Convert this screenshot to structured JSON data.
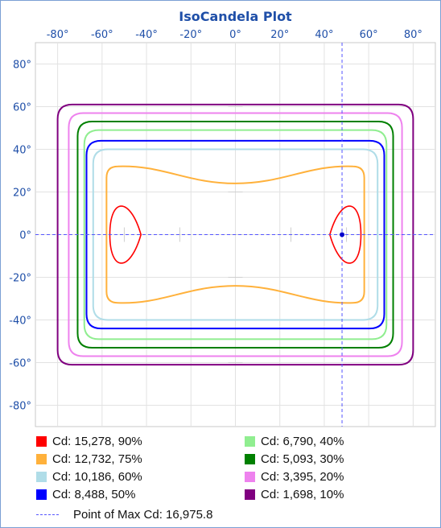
{
  "chart_data": {
    "type": "line",
    "title": "IsoCandela Plot",
    "xlim": [
      -90,
      90
    ],
    "ylim": [
      -90,
      90
    ],
    "x_ticks": [
      "-80°",
      "-60°",
      "-40°",
      "-20°",
      "0°",
      "20°",
      "40°",
      "60°",
      "80°"
    ],
    "y_ticks": [
      "80°",
      "60°",
      "40°",
      "20°",
      "0°",
      "-20°",
      "-40°",
      "-60°",
      "-80°"
    ],
    "grid": true,
    "legend_position": "bottom",
    "series": [
      {
        "name": "Cd: 15,278, 90%",
        "color": "#ff0000",
        "contour": "lobes",
        "half_width": 7,
        "half_height": 17,
        "center_x": 49.5
      },
      {
        "name": "Cd: 12,732, 75%",
        "color": "#ffb13b",
        "contour": "hourglass",
        "half_width": 58,
        "half_height_edge": 32,
        "half_height_center": 24
      },
      {
        "name": "Cd: 10,186, 60%",
        "color": "#b0dde8",
        "contour": "rect",
        "half_width": 64,
        "half_height": 40
      },
      {
        "name": "Cd: 8,488, 50%",
        "color": "#0000ff",
        "contour": "rect",
        "half_width": 67,
        "half_height": 44
      },
      {
        "name": "Cd: 6,790, 40%",
        "color": "#90ee90",
        "contour": "rect",
        "half_width": 68,
        "half_height": 49
      },
      {
        "name": "Cd: 5,093, 30%",
        "color": "#008000",
        "contour": "rect",
        "half_width": 71,
        "half_height": 53
      },
      {
        "name": "Cd: 3,395, 20%",
        "color": "#ee82ee",
        "contour": "rect",
        "half_width": 75,
        "half_height": 57
      },
      {
        "name": "Cd: 1,698, 10%",
        "color": "#800080",
        "contour": "rect",
        "half_width": 80,
        "half_height": 61
      }
    ],
    "max_point": {
      "label": "Point of Max Cd: 16,975.8",
      "x": 48,
      "y": 0,
      "color": "#5555ff"
    }
  }
}
